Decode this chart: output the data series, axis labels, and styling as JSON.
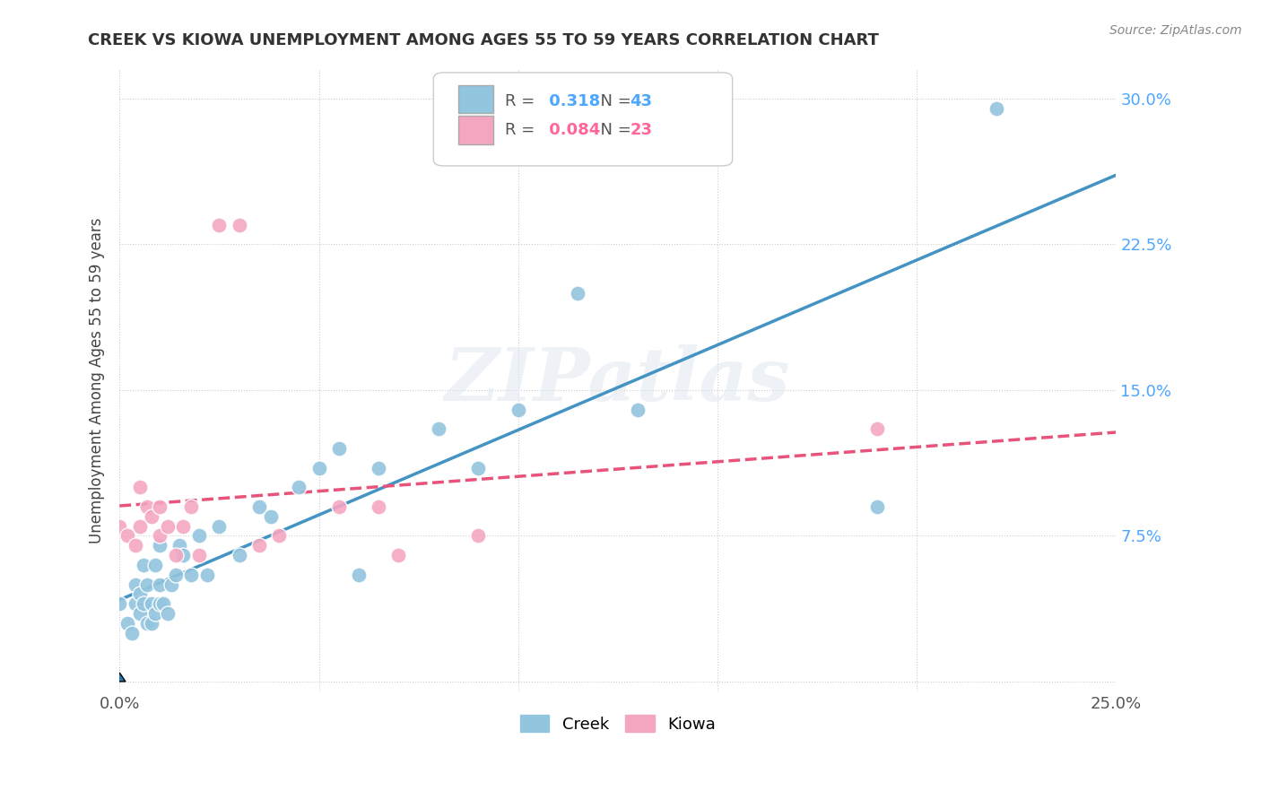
{
  "title": "CREEK VS KIOWA UNEMPLOYMENT AMONG AGES 55 TO 59 YEARS CORRELATION CHART",
  "source": "Source: ZipAtlas.com",
  "ylabel": "Unemployment Among Ages 55 to 59 years",
  "xlim": [
    0.0,
    0.25
  ],
  "ylim": [
    -0.005,
    0.315
  ],
  "xticks": [
    0.0,
    0.05,
    0.1,
    0.15,
    0.2,
    0.25
  ],
  "yticks": [
    0.0,
    0.075,
    0.15,
    0.225,
    0.3
  ],
  "xtick_labels": [
    "0.0%",
    "",
    "",
    "",
    "",
    "25.0%"
  ],
  "ytick_labels": [
    "",
    "7.5%",
    "15.0%",
    "22.5%",
    "30.0%"
  ],
  "creek_color": "#92c5de",
  "kiowa_color": "#f4a6c0",
  "creek_line_color": "#4393c3",
  "kiowa_line_color": "#e8537a",
  "creek_R": 0.318,
  "creek_N": 43,
  "kiowa_R": 0.084,
  "kiowa_N": 23,
  "background_color": "#ffffff",
  "creek_x": [
    0.0,
    0.002,
    0.003,
    0.004,
    0.004,
    0.005,
    0.005,
    0.006,
    0.006,
    0.007,
    0.007,
    0.008,
    0.008,
    0.009,
    0.009,
    0.01,
    0.01,
    0.01,
    0.011,
    0.012,
    0.013,
    0.014,
    0.015,
    0.016,
    0.018,
    0.02,
    0.022,
    0.025,
    0.03,
    0.035,
    0.038,
    0.045,
    0.05,
    0.055,
    0.06,
    0.065,
    0.08,
    0.09,
    0.1,
    0.115,
    0.13,
    0.19,
    0.22
  ],
  "creek_y": [
    0.04,
    0.03,
    0.025,
    0.04,
    0.05,
    0.035,
    0.045,
    0.04,
    0.06,
    0.03,
    0.05,
    0.03,
    0.04,
    0.035,
    0.06,
    0.04,
    0.05,
    0.07,
    0.04,
    0.035,
    0.05,
    0.055,
    0.07,
    0.065,
    0.055,
    0.075,
    0.055,
    0.08,
    0.065,
    0.09,
    0.085,
    0.1,
    0.11,
    0.12,
    0.055,
    0.11,
    0.13,
    0.11,
    0.14,
    0.2,
    0.14,
    0.09,
    0.295
  ],
  "kiowa_x": [
    0.0,
    0.002,
    0.004,
    0.005,
    0.005,
    0.007,
    0.008,
    0.01,
    0.01,
    0.012,
    0.014,
    0.016,
    0.018,
    0.02,
    0.025,
    0.03,
    0.035,
    0.04,
    0.055,
    0.065,
    0.07,
    0.09,
    0.19
  ],
  "kiowa_y": [
    0.08,
    0.075,
    0.07,
    0.08,
    0.1,
    0.09,
    0.085,
    0.075,
    0.09,
    0.08,
    0.065,
    0.08,
    0.09,
    0.065,
    0.235,
    0.235,
    0.07,
    0.075,
    0.09,
    0.09,
    0.065,
    0.075,
    0.13
  ]
}
